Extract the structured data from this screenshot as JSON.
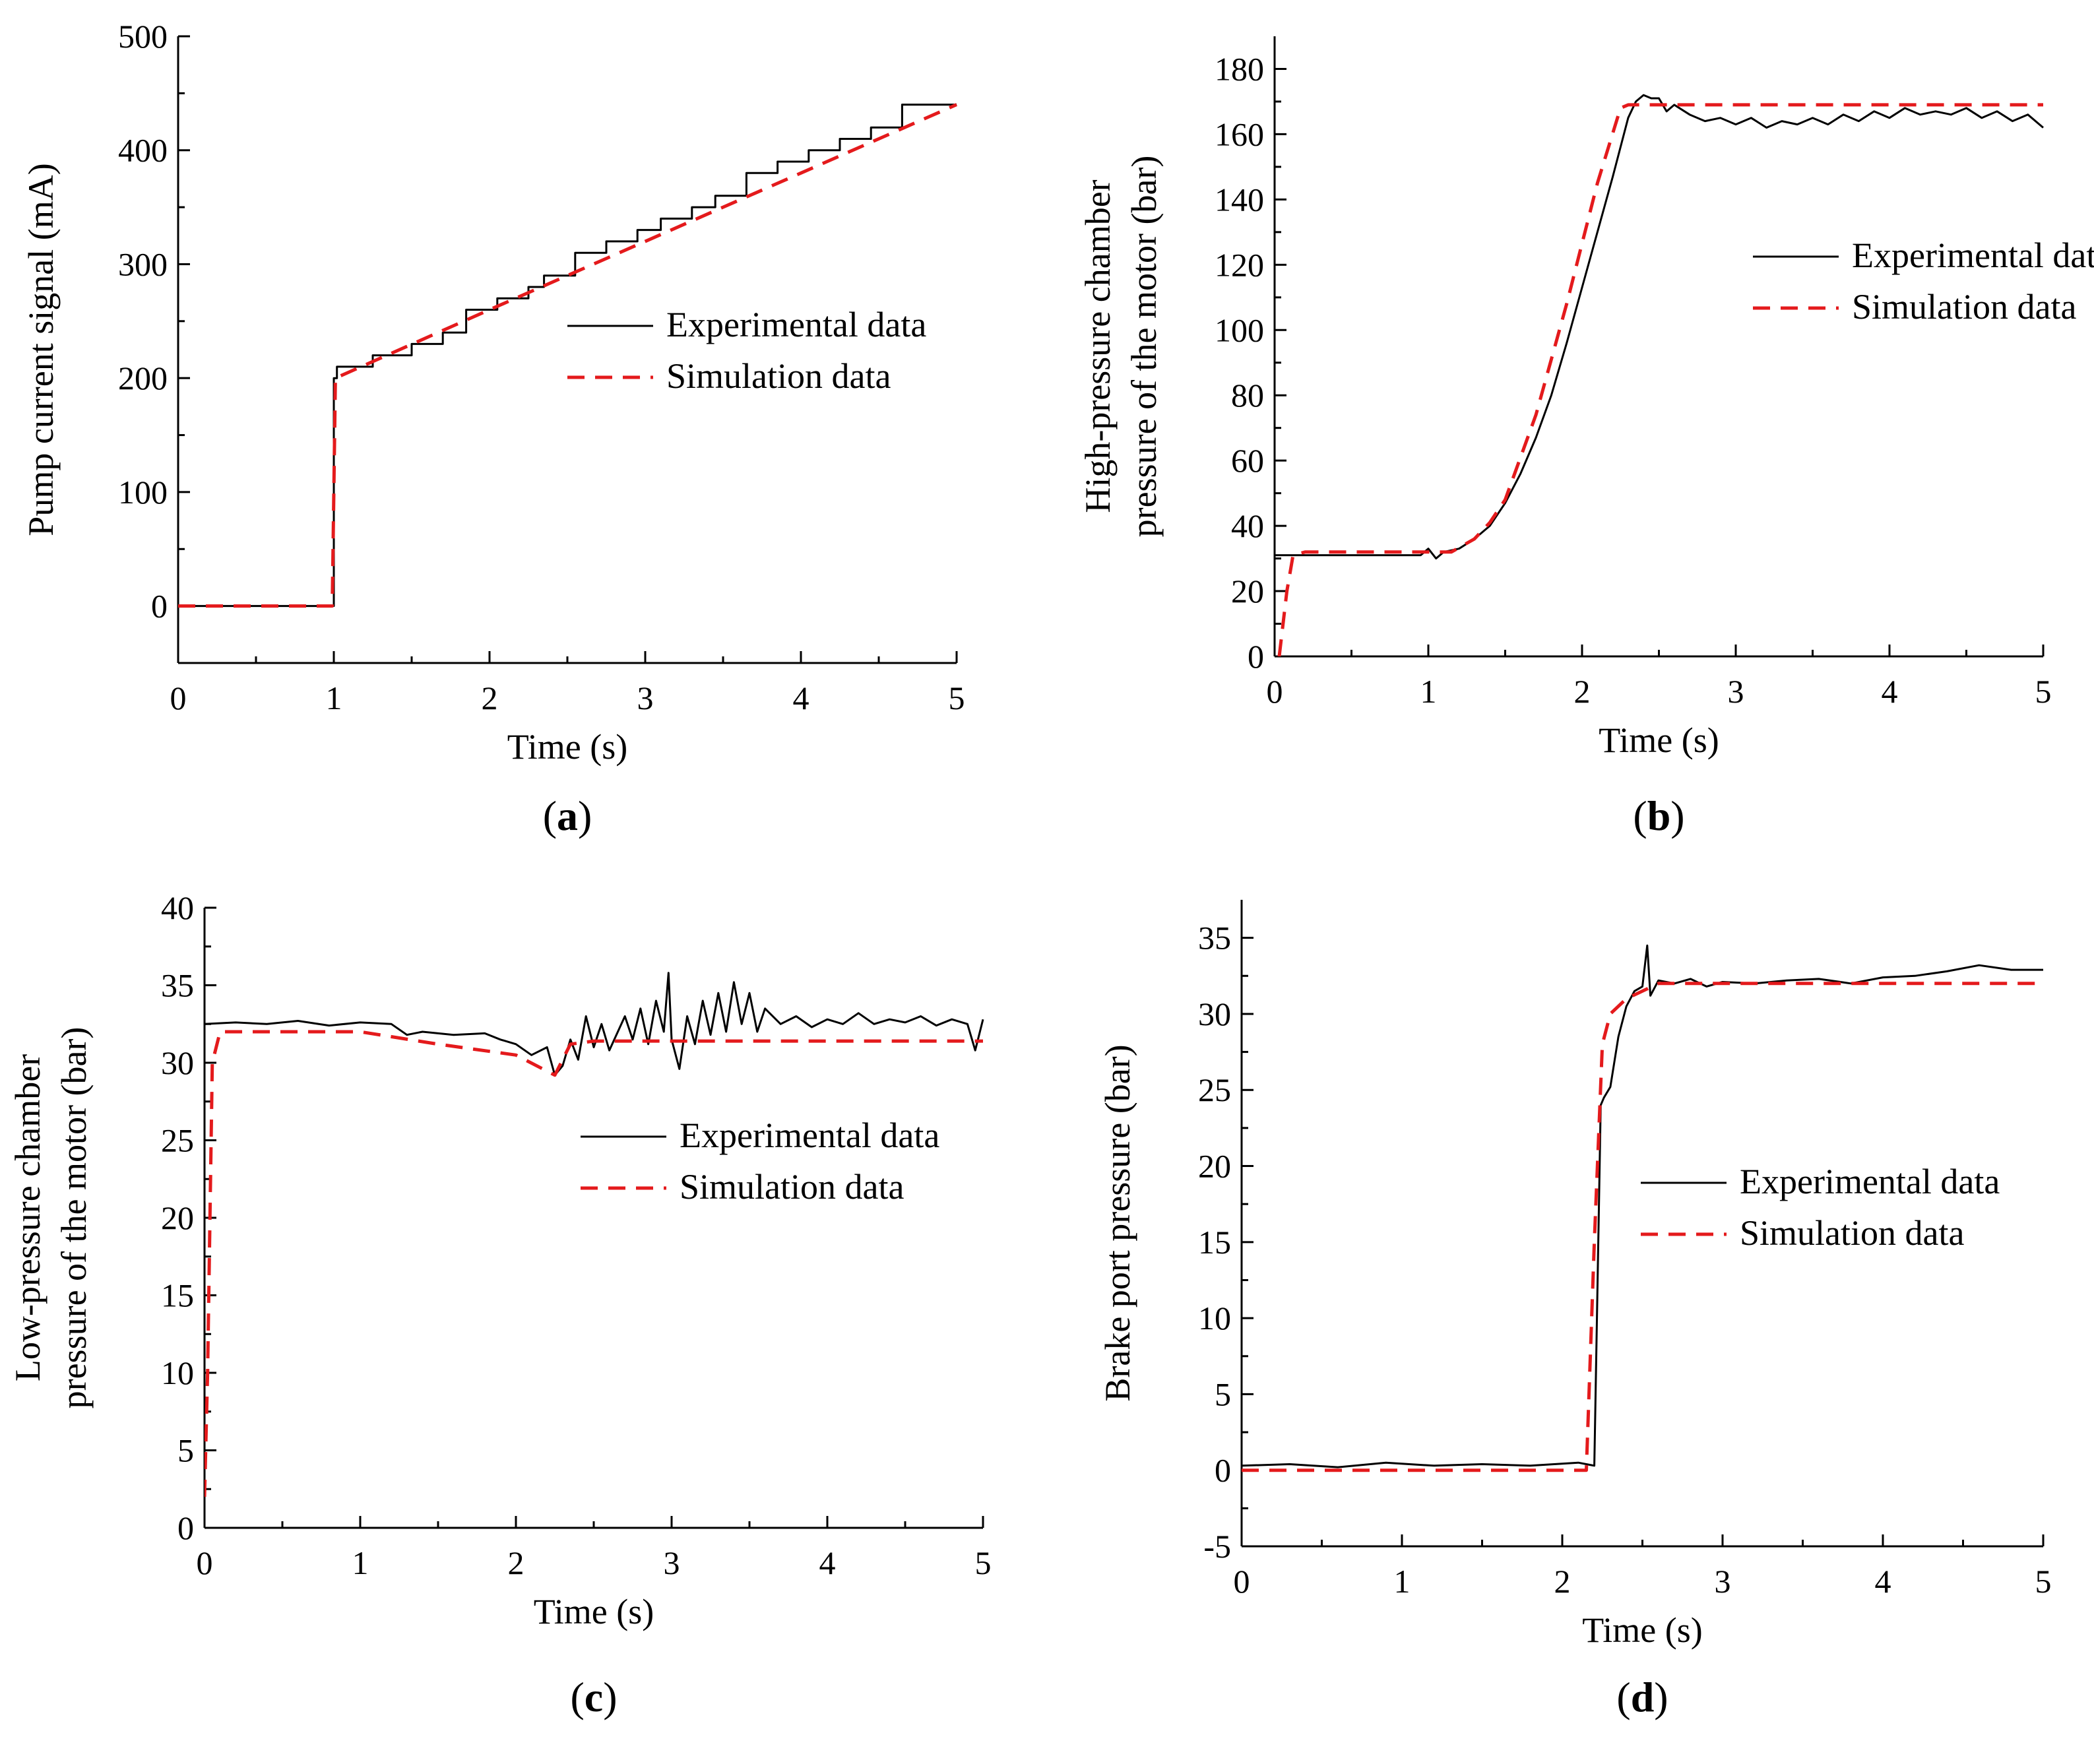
{
  "chart_data": [
    {
      "id": "a",
      "type": "line",
      "caption_letter": "a",
      "xlabel": "Time (s)",
      "ylabel": [
        "Pump current signal (mA)"
      ],
      "xlim": [
        0,
        5
      ],
      "ylim": [
        -50,
        500
      ],
      "xticks": [
        0,
        1,
        2,
        3,
        4,
        5
      ],
      "yticks": [
        0,
        100,
        200,
        300,
        400,
        500
      ],
      "legend_position": "middle-right",
      "series": [
        {
          "name": "Experimental data",
          "color": "#000000",
          "dash": "solid",
          "x": [
            0,
            1.0,
            1.0,
            1.02,
            1.02,
            1.25,
            1.25,
            1.5,
            1.5,
            1.7,
            1.7,
            1.85,
            1.85,
            2.05,
            2.05,
            2.25,
            2.25,
            2.35,
            2.35,
            2.55,
            2.55,
            2.75,
            2.75,
            2.95,
            2.95,
            3.1,
            3.1,
            3.3,
            3.3,
            3.45,
            3.45,
            3.65,
            3.65,
            3.85,
            3.85,
            4.05,
            4.05,
            4.25,
            4.25,
            4.45,
            4.45,
            4.65,
            4.65,
            4.85,
            4.85,
            5.0
          ],
          "y": [
            0,
            0,
            200,
            200,
            210,
            210,
            220,
            220,
            230,
            230,
            240,
            240,
            260,
            260,
            270,
            270,
            280,
            280,
            290,
            290,
            310,
            310,
            320,
            320,
            330,
            330,
            340,
            340,
            350,
            350,
            360,
            360,
            380,
            380,
            390,
            390,
            400,
            400,
            410,
            410,
            420,
            420,
            440,
            440,
            440,
            440
          ]
        },
        {
          "name": "Simulation data",
          "color": "#e41a1c",
          "dash": "dashed",
          "x": [
            0,
            0.99,
            1.0,
            1.01,
            2.0,
            3.0,
            4.0,
            5.0
          ],
          "y": [
            0,
            0,
            100,
            200,
            260,
            320,
            380,
            440
          ]
        }
      ]
    },
    {
      "id": "b",
      "type": "line",
      "caption_letter": "b",
      "xlabel": "Time (s)",
      "ylabel": [
        "High-pressure chamber",
        "pressure of the motor (bar)"
      ],
      "xlim": [
        0,
        5
      ],
      "ylim": [
        0,
        190
      ],
      "xticks": [
        0,
        1,
        2,
        3,
        4,
        5
      ],
      "yticks": [
        0,
        20,
        40,
        60,
        80,
        100,
        120,
        140,
        160,
        180
      ],
      "legend_position": "middle-right",
      "series": [
        {
          "name": "Experimental data",
          "color": "#000000",
          "dash": "solid",
          "x": [
            0,
            0.5,
            0.95,
            1.0,
            1.05,
            1.1,
            1.2,
            1.3,
            1.4,
            1.5,
            1.6,
            1.7,
            1.8,
            1.9,
            2.0,
            2.1,
            2.2,
            2.3,
            2.35,
            2.4,
            2.45,
            2.5,
            2.55,
            2.6,
            2.7,
            2.8,
            2.9,
            3.0,
            3.1,
            3.2,
            3.3,
            3.4,
            3.5,
            3.6,
            3.7,
            3.8,
            3.9,
            4.0,
            4.1,
            4.2,
            4.3,
            4.4,
            4.5,
            4.6,
            4.7,
            4.8,
            4.9,
            5.0
          ],
          "y": [
            31,
            31,
            31,
            33,
            30,
            32,
            33,
            36,
            40,
            47,
            56,
            67,
            80,
            96,
            113,
            130,
            147,
            165,
            170,
            172,
            171,
            171,
            167,
            169,
            166,
            164,
            165,
            163,
            165,
            162,
            164,
            163,
            165,
            163,
            166,
            164,
            167,
            165,
            168,
            166,
            167,
            166,
            168,
            165,
            167,
            164,
            166,
            162
          ]
        },
        {
          "name": "Simulation data",
          "color": "#e41a1c",
          "dash": "dashed",
          "x": [
            0.03,
            0.08,
            0.12,
            0.2,
            1.0,
            1.15,
            1.3,
            1.4,
            1.5,
            1.7,
            1.9,
            2.1,
            2.25,
            2.3,
            5.0
          ],
          "y": [
            0,
            20,
            31,
            32,
            32,
            32,
            36,
            41,
            48,
            74,
            108,
            145,
            168,
            169,
            169
          ]
        }
      ]
    },
    {
      "id": "c",
      "type": "line",
      "caption_letter": "c",
      "xlabel": "Time (s)",
      "ylabel": [
        "Low-pressure chamber",
        "pressure of the motor (bar)"
      ],
      "xlim": [
        0,
        5
      ],
      "ylim": [
        0,
        40
      ],
      "xticks": [
        0,
        1,
        2,
        3,
        4,
        5
      ],
      "yticks": [
        0,
        5,
        10,
        15,
        20,
        25,
        30,
        35,
        40
      ],
      "legend_position": "middle-right",
      "series": [
        {
          "name": "Experimental data",
          "color": "#000000",
          "dash": "solid",
          "x": [
            0,
            0.2,
            0.4,
            0.6,
            0.8,
            1.0,
            1.2,
            1.3,
            1.4,
            1.6,
            1.8,
            1.9,
            2.0,
            2.1,
            2.2,
            2.25,
            2.3,
            2.35,
            2.4,
            2.45,
            2.5,
            2.55,
            2.6,
            2.7,
            2.75,
            2.8,
            2.85,
            2.9,
            2.95,
            2.98,
            3.0,
            3.05,
            3.1,
            3.15,
            3.2,
            3.25,
            3.3,
            3.35,
            3.4,
            3.45,
            3.5,
            3.55,
            3.6,
            3.7,
            3.8,
            3.9,
            4.0,
            4.1,
            4.2,
            4.3,
            4.4,
            4.5,
            4.6,
            4.7,
            4.8,
            4.9,
            4.95,
            5.0
          ],
          "y": [
            32.5,
            32.6,
            32.5,
            32.7,
            32.4,
            32.6,
            32.5,
            31.8,
            32.0,
            31.8,
            31.9,
            31.5,
            31.2,
            30.5,
            31.0,
            29.2,
            29.8,
            31.5,
            30.2,
            33.0,
            31.0,
            32.5,
            30.8,
            33.0,
            31.5,
            33.5,
            31.2,
            34.0,
            32.0,
            35.8,
            31.5,
            29.6,
            33.0,
            31.2,
            34.0,
            31.8,
            34.5,
            32.0,
            35.2,
            32.5,
            34.5,
            32.0,
            33.5,
            32.5,
            33.0,
            32.3,
            32.8,
            32.5,
            33.2,
            32.5,
            32.8,
            32.6,
            33.0,
            32.4,
            32.8,
            32.5,
            30.8,
            32.8
          ]
        },
        {
          "name": "Simulation data",
          "color": "#e41a1c",
          "dash": "dashed",
          "x": [
            0.0,
            0.02,
            0.05,
            0.1,
            1.0,
            1.5,
            2.0,
            2.25,
            2.35,
            2.5,
            3.0,
            4.0,
            5.0
          ],
          "y": [
            2,
            10,
            30,
            32,
            32,
            31.2,
            30.5,
            29.2,
            31.2,
            31.4,
            31.4,
            31.4,
            31.4
          ]
        }
      ]
    },
    {
      "id": "d",
      "type": "line",
      "caption_letter": "d",
      "xlabel": "Time (s)",
      "ylabel": [
        "Brake port pressure (bar)"
      ],
      "xlim": [
        0,
        5
      ],
      "ylim": [
        -5,
        37.5
      ],
      "xticks": [
        0,
        1,
        2,
        3,
        4,
        5
      ],
      "yticks": [
        -5,
        0,
        5,
        10,
        15,
        20,
        25,
        30,
        35
      ],
      "legend_position": "middle-right",
      "series": [
        {
          "name": "Experimental data",
          "color": "#000000",
          "dash": "solid",
          "x": [
            0,
            0.3,
            0.6,
            0.9,
            1.2,
            1.5,
            1.8,
            2.1,
            2.2,
            2.24,
            2.26,
            2.3,
            2.35,
            2.4,
            2.45,
            2.5,
            2.53,
            2.55,
            2.6,
            2.7,
            2.8,
            2.9,
            3.0,
            3.2,
            3.4,
            3.6,
            3.8,
            4.0,
            4.2,
            4.4,
            4.6,
            4.8,
            5.0
          ],
          "y": [
            0.3,
            0.4,
            0.2,
            0.5,
            0.3,
            0.4,
            0.3,
            0.5,
            0.3,
            24.0,
            24.5,
            25.2,
            28.5,
            30.5,
            31.5,
            31.8,
            34.5,
            31.2,
            32.2,
            32.0,
            32.3,
            31.8,
            32.1,
            32.0,
            32.2,
            32.3,
            32.0,
            32.4,
            32.5,
            32.8,
            33.2,
            32.9,
            32.9
          ]
        },
        {
          "name": "Simulation data",
          "color": "#e41a1c",
          "dash": "dashed",
          "x": [
            0,
            2.15,
            2.2,
            2.25,
            2.3,
            2.4,
            2.5,
            2.6,
            3.0,
            4.0,
            5.0
          ],
          "y": [
            0,
            0,
            15,
            28,
            30,
            31,
            31.5,
            32,
            32,
            32,
            32
          ]
        }
      ]
    }
  ]
}
